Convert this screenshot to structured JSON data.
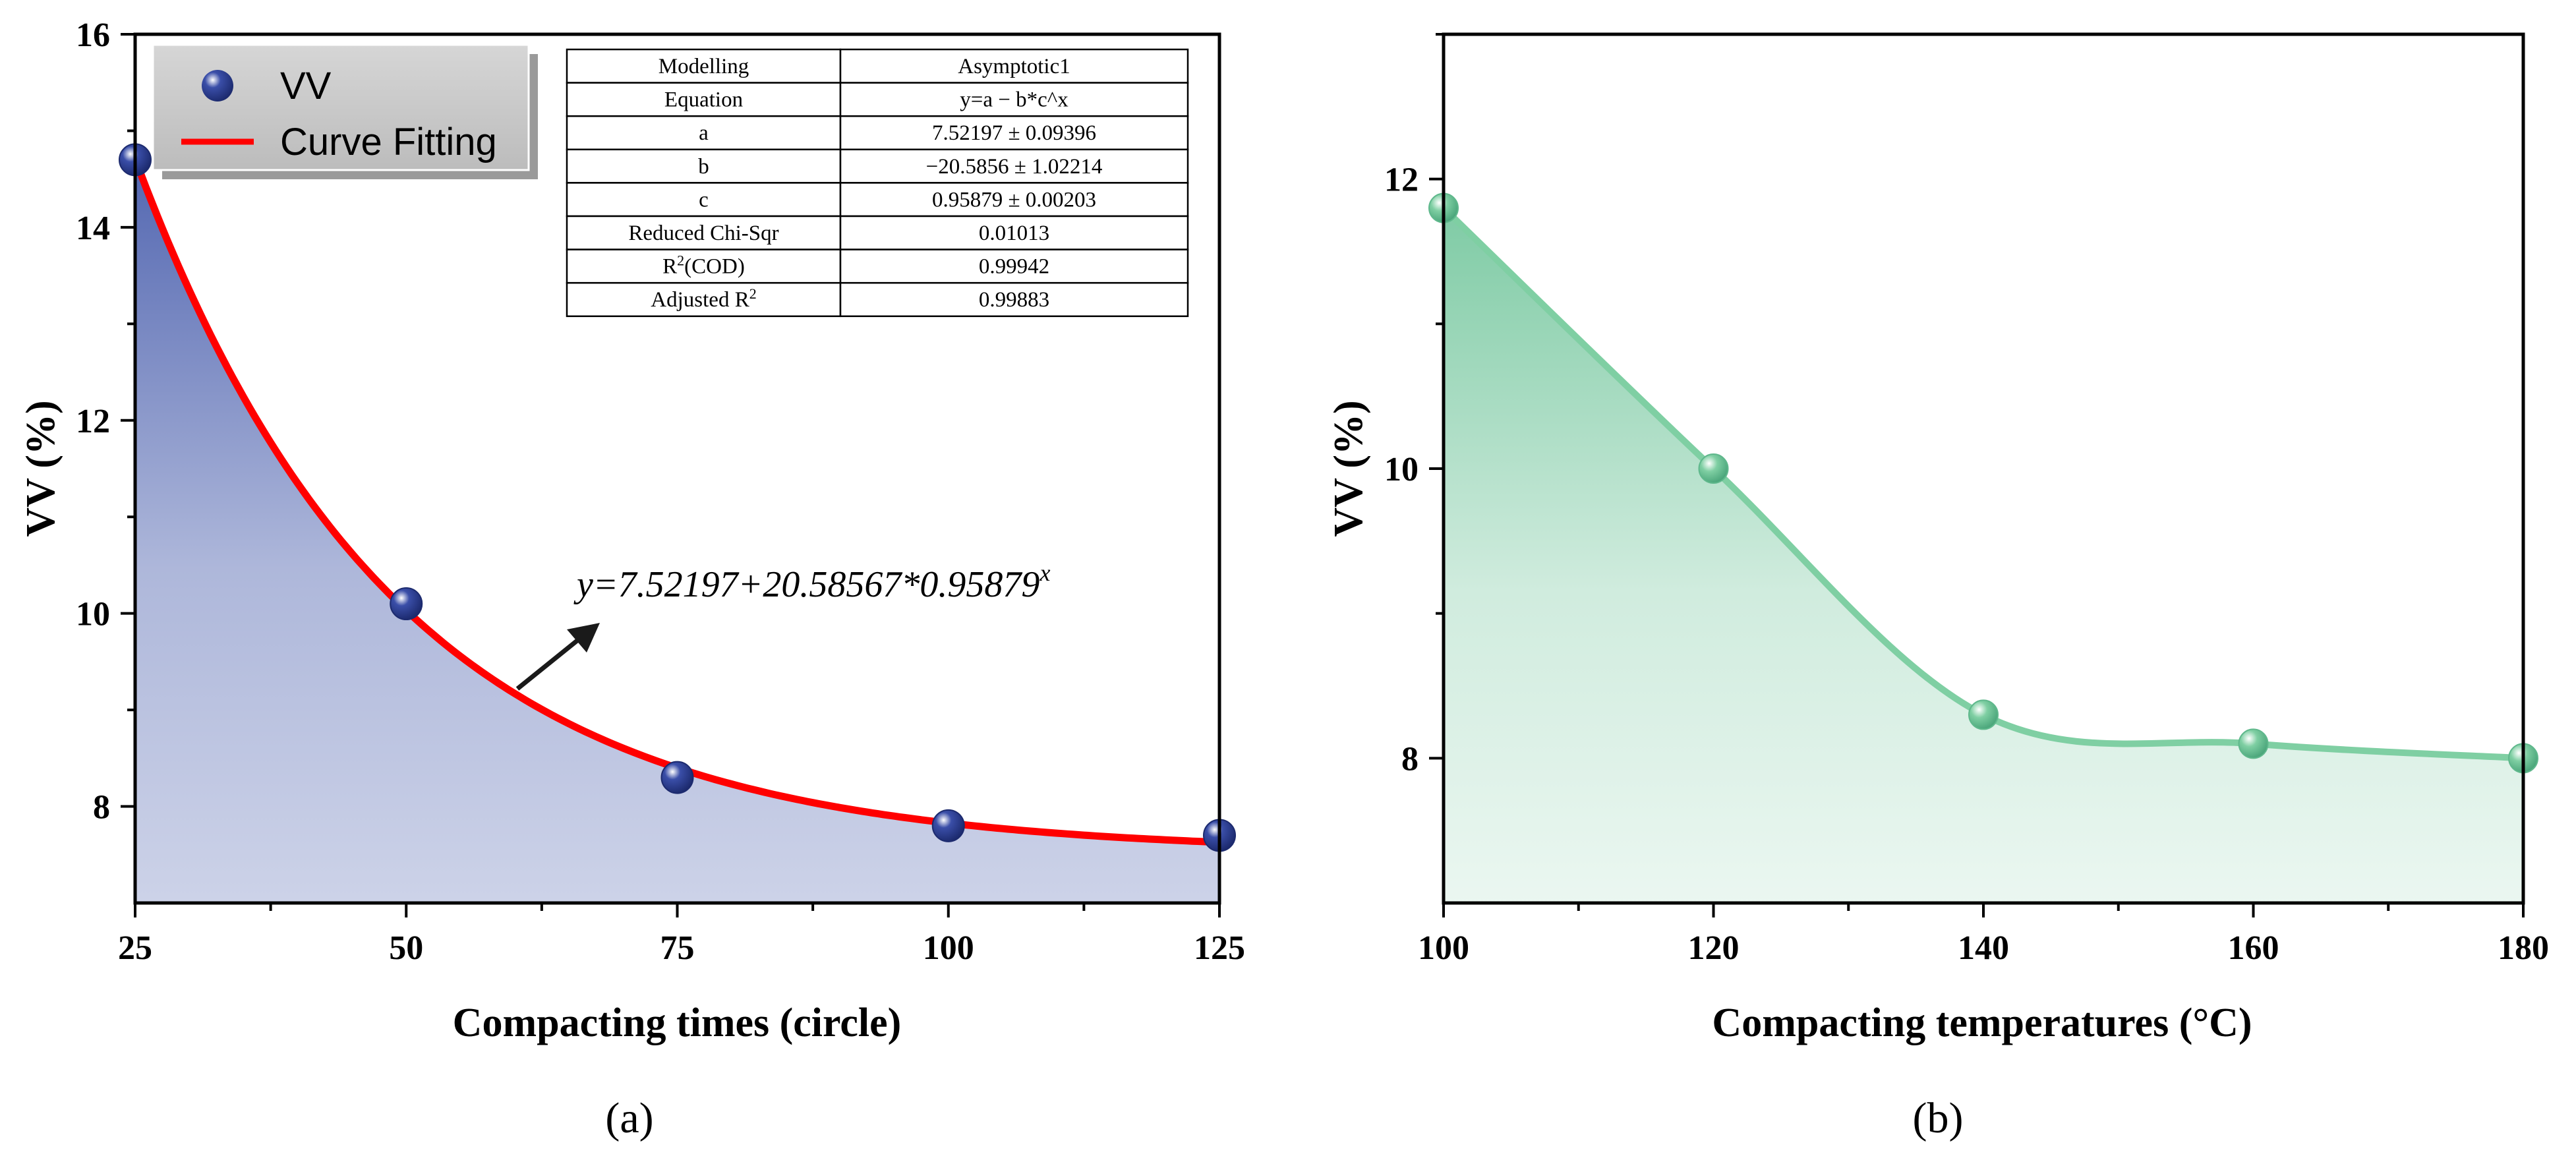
{
  "chart_data": [
    {
      "id": "a",
      "type": "scatter",
      "caption": "(a)",
      "xlabel": "Compacting times (circle)",
      "ylabel": "VV (%)",
      "xlim": [
        25,
        125
      ],
      "ylim": [
        7,
        16
      ],
      "xticks": [
        "25",
        "50",
        "75",
        "100",
        "125"
      ],
      "yticks": [
        "8",
        "10",
        "12",
        "14",
        "16"
      ],
      "fill_color": "#4a5fad",
      "point_color": "#3a4ea8",
      "curve_color": "#ff0000",
      "series": [
        {
          "name": "VV",
          "x": [
            25,
            50,
            75,
            100,
            125
          ],
          "y": [
            14.7,
            10.1,
            8.3,
            7.8,
            7.7
          ]
        }
      ],
      "fit": {
        "name": "Curve Fitting",
        "a": 7.52197,
        "b": -20.5856,
        "c": 0.95879
      },
      "legend": {
        "placement": "top-left",
        "entries": [
          "VV",
          "Curve Fitting"
        ]
      },
      "annotation": {
        "equation": "y=7.52197+20.58567*0.95879",
        "superscript": "x"
      },
      "table": {
        "rows": [
          [
            "Modelling",
            "Asymptotic1"
          ],
          [
            "Equation",
            "y=a − b*c^x"
          ],
          [
            "a",
            "7.52197 ± 0.09396"
          ],
          [
            "b",
            "−20.5856 ± 1.02214"
          ],
          [
            "c",
            "0.95879 ± 0.00203"
          ],
          [
            "Reduced Chi-Sqr",
            "0.01013"
          ],
          [
            "R2(COD)",
            "0.99942"
          ],
          [
            "Adjusted R2",
            "0.99883"
          ]
        ],
        "r2_base": "R",
        "r2_sup": "2",
        "r2_rest": "(COD)",
        "adj_base": "Adjusted R",
        "adj_sup": "2"
      }
    },
    {
      "id": "b",
      "type": "line",
      "caption": "(b)",
      "xlabel": "Compacting temperatures (°C)",
      "ylabel": "VV (%)",
      "xlim": [
        100,
        180
      ],
      "ylim": [
        7,
        13
      ],
      "xticks": [
        "100",
        "120",
        "140",
        "160",
        "180"
      ],
      "yticks": [
        "8",
        "10",
        "12"
      ],
      "fill_color": "#78c8a0",
      "line_color": "#7fcfa3",
      "series": [
        {
          "name": "VV",
          "x": [
            100,
            120,
            140,
            160,
            180
          ],
          "y": [
            11.8,
            10.0,
            8.3,
            8.1,
            8.0
          ]
        }
      ]
    }
  ]
}
